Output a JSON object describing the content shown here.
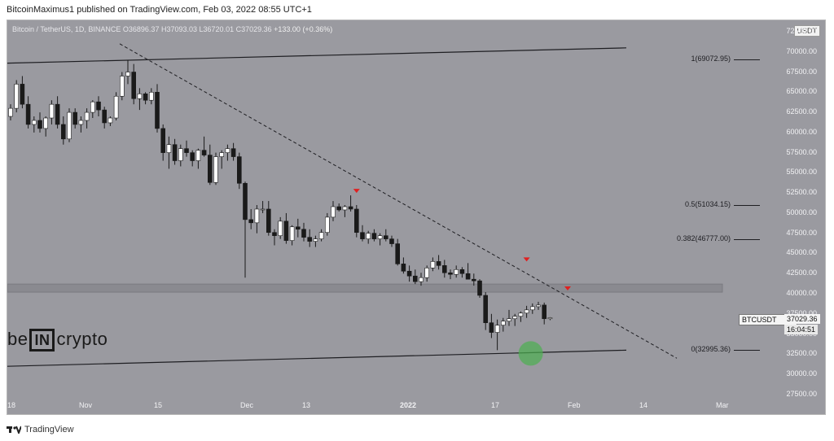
{
  "header": {
    "text": "BitcoinMaximus1 published on TradingView.com, Feb 03, 2022 08:55 UTC+1"
  },
  "legend": {
    "symbol": "Bitcoin / TetherUS, 1D, BINANCE",
    "open": "O36896.37",
    "high": "H37093.03",
    "low": "L36720.01",
    "close": "C37029.36",
    "change": "+133.00 (+0.36%)"
  },
  "unit": "USDT",
  "y_ticks": [
    "72500.00",
    "70000.00",
    "67500.00",
    "65000.00",
    "62500.00",
    "60000.00",
    "57500.00",
    "55000.00",
    "52500.00",
    "50000.00",
    "47500.00",
    "45000.00",
    "42500.00",
    "40000.00",
    "37500.00",
    "35000.00",
    "32500.00",
    "30000.00",
    "27500.00"
  ],
  "x_ticks": [
    "18",
    "Nov",
    "15",
    "Dec",
    "13",
    "2022",
    "17",
    "Feb",
    "14",
    "Mar"
  ],
  "fib_levels": [
    {
      "label": "1(69072.95)",
      "value": 69072.95
    },
    {
      "label": "0.5(51034.15)",
      "value": 51034.15
    },
    {
      "label": "0.382(46777.00)",
      "value": 46777.0
    },
    {
      "label": "0(32995.36)",
      "value": 32995.36
    }
  ],
  "price_tag": {
    "symbol": "BTCUSDT",
    "price": "37029.36",
    "countdown": "16:04:51"
  },
  "logo": {
    "pre": "be",
    "mid": "IN",
    "post": "crypto"
  },
  "footer": {
    "brand": "TradingView"
  },
  "colors": {
    "background": "#9a9aa0",
    "up": "#ffffff",
    "down": "#1a1a1a",
    "marker": "#e02020",
    "circle": "#4caf50"
  },
  "chart_data": {
    "type": "candlestick",
    "interval": "1D",
    "candles": [
      [
        62000,
        63500,
        61500,
        63000
      ],
      [
        63000,
        66500,
        62500,
        66000
      ],
      [
        66000,
        67000,
        63000,
        63500
      ],
      [
        63500,
        64500,
        60500,
        61000
      ],
      [
        61000,
        62000,
        60000,
        61500
      ],
      [
        61500,
        62500,
        60000,
        60500
      ],
      [
        60500,
        62000,
        59500,
        61800
      ],
      [
        61800,
        64000,
        61000,
        63500
      ],
      [
        63500,
        64500,
        60500,
        61000
      ],
      [
        61000,
        62000,
        58500,
        59200
      ],
      [
        59200,
        63000,
        58800,
        62500
      ],
      [
        62500,
        63000,
        60500,
        61000
      ],
      [
        61000,
        62000,
        60000,
        61500
      ],
      [
        61500,
        63000,
        60500,
        62500
      ],
      [
        62500,
        64000,
        61800,
        63800
      ],
      [
        63800,
        64500,
        62000,
        62800
      ],
      [
        62800,
        63200,
        60500,
        61200
      ],
      [
        61200,
        62000,
        60800,
        61800
      ],
      [
        61800,
        65000,
        61500,
        64500
      ],
      [
        64500,
        67500,
        64000,
        67000
      ],
      [
        67000,
        69000,
        66000,
        67500
      ],
      [
        67500,
        68500,
        63500,
        64200
      ],
      [
        64200,
        65500,
        62800,
        64800
      ],
      [
        64800,
        65000,
        63500,
        64000
      ],
      [
        64000,
        65500,
        63500,
        65000
      ],
      [
        65000,
        66000,
        60000,
        60500
      ],
      [
        60500,
        61000,
        56500,
        57500
      ],
      [
        57500,
        59500,
        55500,
        58500
      ],
      [
        58500,
        59200,
        56000,
        56500
      ],
      [
        56500,
        58500,
        55800,
        58000
      ],
      [
        58000,
        59000,
        57000,
        57500
      ],
      [
        57500,
        57800,
        55800,
        56500
      ],
      [
        56500,
        58000,
        55500,
        57800
      ],
      [
        57800,
        59500,
        57000,
        57200
      ],
      [
        57200,
        58500,
        53500,
        53800
      ],
      [
        53800,
        57500,
        53500,
        57000
      ],
      [
        57000,
        57800,
        55500,
        57500
      ],
      [
        57500,
        58500,
        56500,
        58000
      ],
      [
        58000,
        58700,
        56500,
        57000
      ],
      [
        57000,
        57500,
        53000,
        53700
      ],
      [
        53700,
        53900,
        42000,
        49200
      ],
      [
        49200,
        50500,
        48000,
        48800
      ],
      [
        48800,
        51000,
        47500,
        50500
      ],
      [
        50500,
        51500,
        50000,
        50500
      ],
      [
        50500,
        51500,
        47200,
        47600
      ],
      [
        47600,
        48000,
        46000,
        47200
      ],
      [
        47200,
        49500,
        46800,
        49000
      ],
      [
        49000,
        50000,
        46200,
        46600
      ],
      [
        46600,
        48500,
        46000,
        48300
      ],
      [
        48300,
        49300,
        47000,
        48000
      ],
      [
        48000,
        48800,
        46500,
        47000
      ],
      [
        47000,
        48000,
        45800,
        46500
      ],
      [
        46500,
        47200,
        45800,
        46800
      ],
      [
        46800,
        48000,
        46500,
        47600
      ],
      [
        47600,
        50000,
        47200,
        49500
      ],
      [
        49500,
        51500,
        49000,
        50800
      ],
      [
        50800,
        51200,
        50200,
        50400
      ],
      [
        50400,
        51000,
        49500,
        50800
      ],
      [
        50800,
        52200,
        50200,
        50500
      ],
      [
        50500,
        51000,
        47000,
        47600
      ],
      [
        47600,
        48500,
        46500,
        46800
      ],
      [
        46800,
        47800,
        46200,
        47500
      ],
      [
        47500,
        48000,
        46500,
        46800
      ],
      [
        46800,
        47500,
        46000,
        47200
      ],
      [
        47200,
        48000,
        46500,
        46800
      ],
      [
        46800,
        47200,
        45800,
        46200
      ],
      [
        46200,
        46800,
        43500,
        43700
      ],
      [
        43700,
        44500,
        42500,
        42800
      ],
      [
        42800,
        43500,
        41500,
        42200
      ],
      [
        42200,
        43000,
        41200,
        41500
      ],
      [
        41500,
        42600,
        41000,
        42000
      ],
      [
        42000,
        43500,
        41500,
        43200
      ],
      [
        43200,
        44500,
        42800,
        44000
      ],
      [
        44000,
        44800,
        43000,
        43500
      ],
      [
        43500,
        44200,
        42000,
        42600
      ],
      [
        42600,
        43000,
        41800,
        42400
      ],
      [
        42400,
        43500,
        42000,
        43000
      ],
      [
        43000,
        43300,
        42000,
        42500
      ],
      [
        42500,
        43800,
        41800,
        41800
      ],
      [
        41800,
        42500,
        41000,
        41600
      ],
      [
        41600,
        41800,
        39500,
        39800
      ],
      [
        39800,
        40200,
        35500,
        36400
      ],
      [
        36400,
        37500,
        34500,
        35200
      ],
      [
        35200,
        36800,
        33000,
        36100
      ],
      [
        36100,
        37000,
        35300,
        36600
      ],
      [
        36600,
        38000,
        36000,
        36900
      ],
      [
        36900,
        37500,
        36000,
        37200
      ],
      [
        37200,
        37800,
        36500,
        37600
      ],
      [
        37600,
        38500,
        37000,
        38000
      ],
      [
        38000,
        38800,
        37500,
        38400
      ],
      [
        38400,
        39000,
        38000,
        38600
      ],
      [
        38600,
        38900,
        36200,
        36900
      ],
      [
        36896.37,
        37093.03,
        36720.01,
        37029.36
      ]
    ],
    "highlighted_low": 32995.36,
    "annotations": [
      "resistance markers at descending trendline",
      "support zone ~40000-41000"
    ]
  }
}
